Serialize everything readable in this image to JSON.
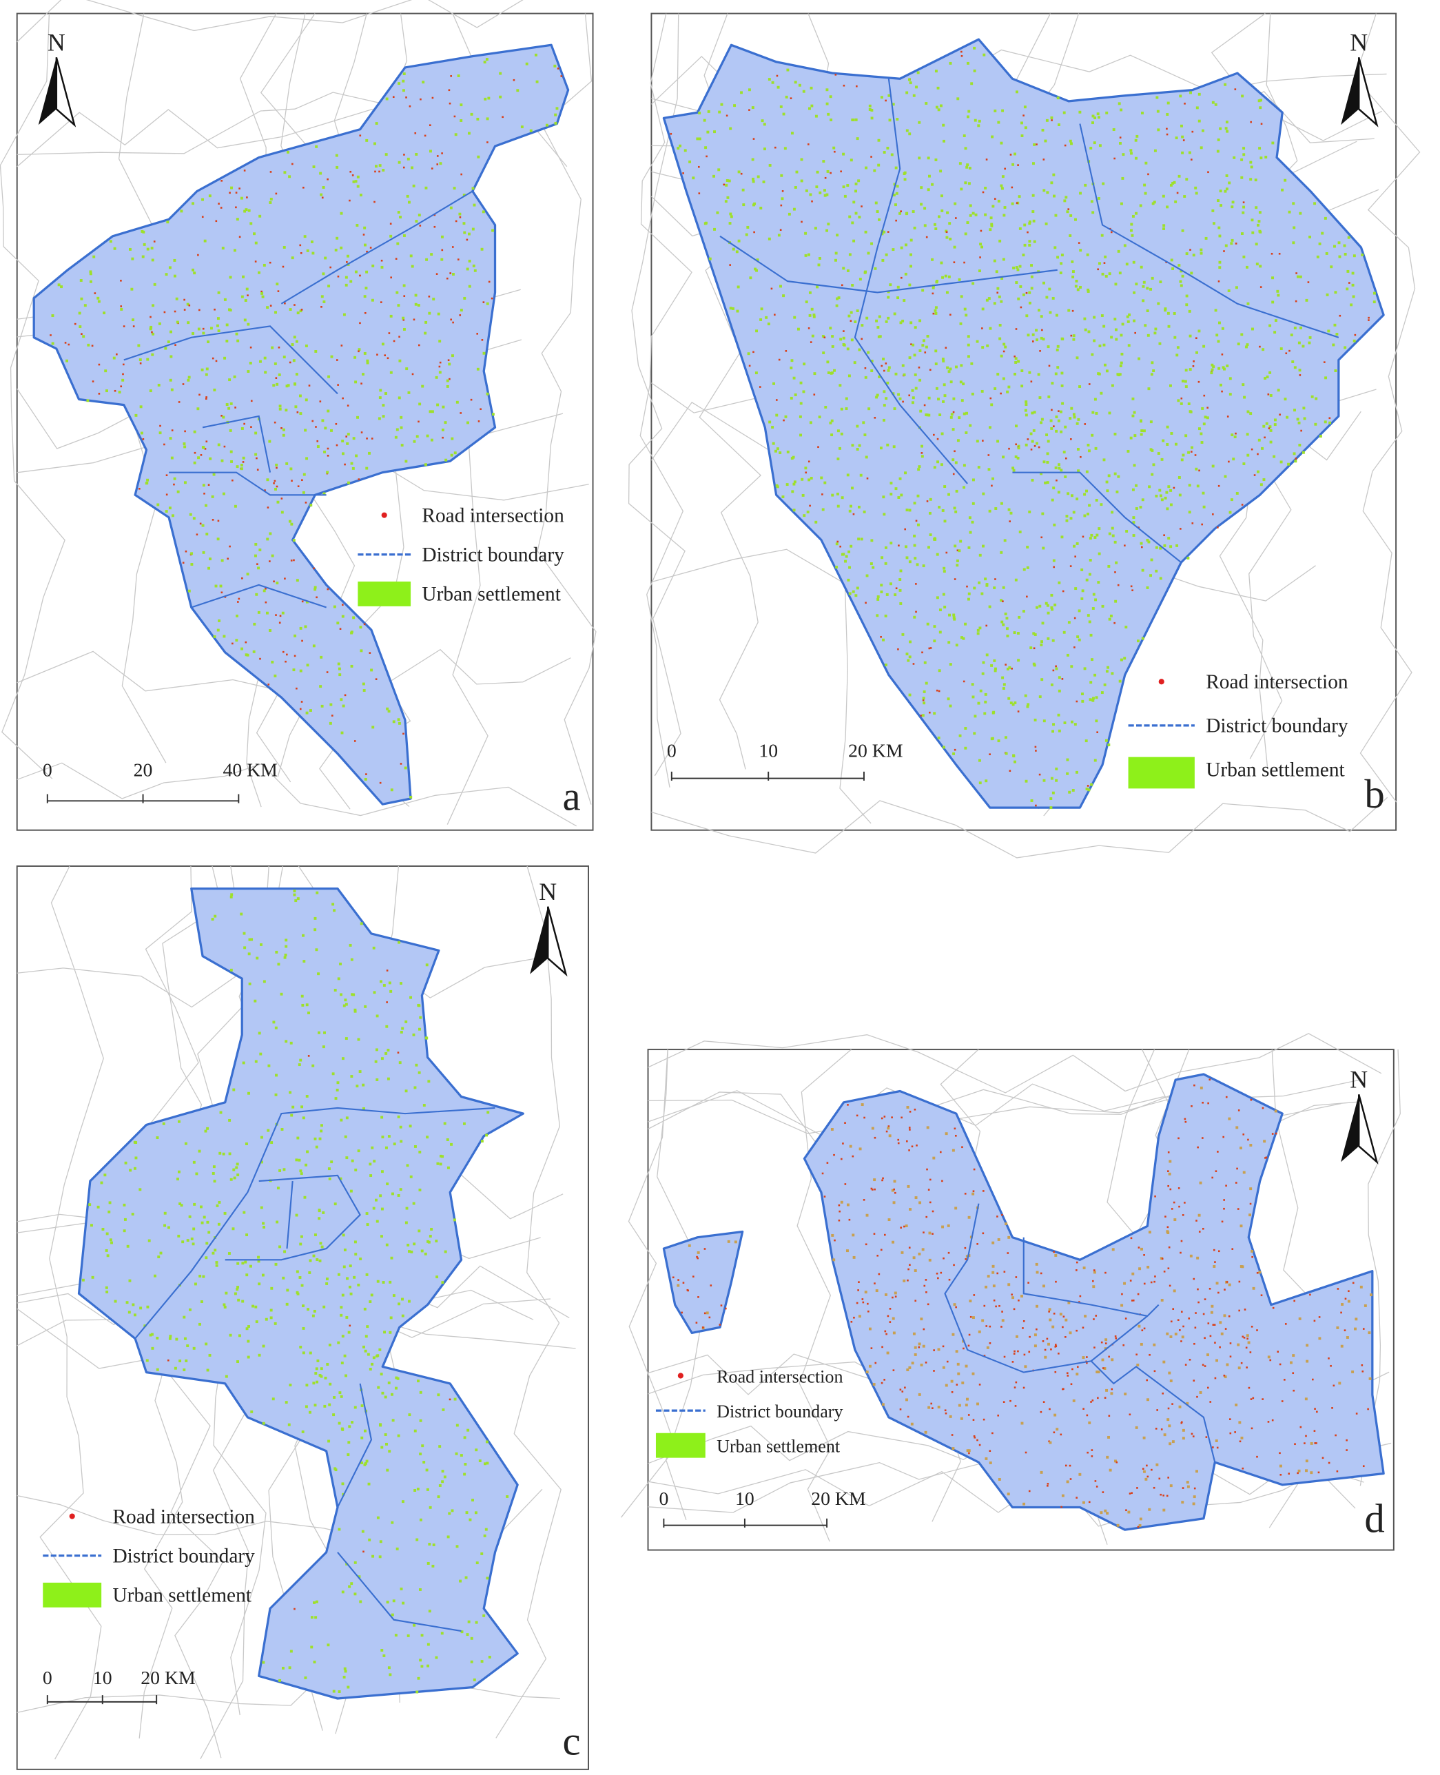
{
  "panels": [
    {
      "label": "a",
      "north": "N",
      "legend": [
        "Road intersection",
        "District boundary",
        "Urban settlement"
      ],
      "scale": [
        "0",
        "20",
        "40 KM"
      ]
    },
    {
      "label": "b",
      "north": "N",
      "legend": [
        "Road intersection",
        "District boundary",
        "Urban settlement"
      ],
      "scale": [
        "0",
        "10",
        "20 KM"
      ]
    },
    {
      "label": "c",
      "north": "N",
      "legend": [
        "Road intersection",
        "District boundary",
        "Urban settlement"
      ],
      "scale": [
        "0",
        "10",
        "20 KM"
      ]
    },
    {
      "label": "d",
      "north": "N",
      "legend": [
        "Road intersection",
        "District boundary",
        "Urban settlement"
      ],
      "scale": [
        "0",
        "10",
        "20 KM"
      ]
    }
  ]
}
